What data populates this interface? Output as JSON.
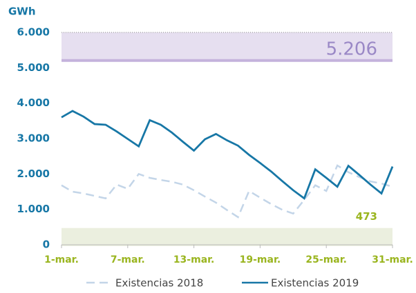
{
  "chart_data": {
    "type": "line",
    "y_label": "GWh",
    "x": [
      1,
      2,
      3,
      4,
      5,
      6,
      7,
      8,
      9,
      10,
      11,
      12,
      13,
      14,
      15,
      16,
      17,
      18,
      19,
      20,
      21,
      22,
      23,
      24,
      25,
      26,
      27,
      28,
      29,
      30,
      31
    ],
    "xlim": [
      1,
      31
    ],
    "xticks": [
      {
        "value": 1,
        "label": "1-mar."
      },
      {
        "value": 7,
        "label": "7-mar."
      },
      {
        "value": 13,
        "label": "13-mar."
      },
      {
        "value": 19,
        "label": "19-mar."
      },
      {
        "value": 25,
        "label": "25-mar."
      },
      {
        "value": 31,
        "label": "31-mar."
      }
    ],
    "ylim": [
      0,
      6000
    ],
    "yticks": [
      0,
      {
        "value": 1000,
        "label": "1.000"
      },
      {
        "value": 2000,
        "label": "2.000"
      },
      {
        "value": 3000,
        "label": "3.000"
      },
      {
        "value": 4000,
        "label": "4.000"
      },
      {
        "value": 5000,
        "label": "5.000"
      },
      {
        "value": 6000,
        "label": "6.000"
      }
    ],
    "grid": false,
    "bands": [
      {
        "from": 5206,
        "to": 6000,
        "label": "5.206",
        "color": "#e6dff0",
        "edge_color": "#c4b2dc",
        "label_color": "#9a88c6"
      },
      {
        "from": 0,
        "to": 473,
        "label": "473",
        "color": "#ebefdf",
        "edge_color": "#ebefdf",
        "label_color": "#9ab51f"
      }
    ],
    "series": [
      {
        "name": "Existencias 2018",
        "color": "#c3d5e8",
        "dashed": true,
        "values": [
          1680,
          1500,
          1450,
          1380,
          1310,
          1700,
          1580,
          2000,
          1890,
          1830,
          1780,
          1700,
          1540,
          1360,
          1190,
          980,
          780,
          1520,
          1330,
          1150,
          990,
          880,
          1270,
          1680,
          1520,
          2240,
          2050,
          1910,
          1790,
          1730,
          1640
        ]
      },
      {
        "name": "Existencias 2019",
        "color": "#1777a6",
        "dashed": false,
        "values": [
          3600,
          3780,
          3620,
          3410,
          3390,
          3200,
          2990,
          2780,
          3520,
          3390,
          3170,
          2910,
          2660,
          2980,
          3130,
          2950,
          2800,
          2540,
          2310,
          2070,
          1800,
          1540,
          1310,
          2130,
          1890,
          1640,
          2230,
          1970,
          1700,
          1450,
          2210
        ]
      }
    ]
  }
}
